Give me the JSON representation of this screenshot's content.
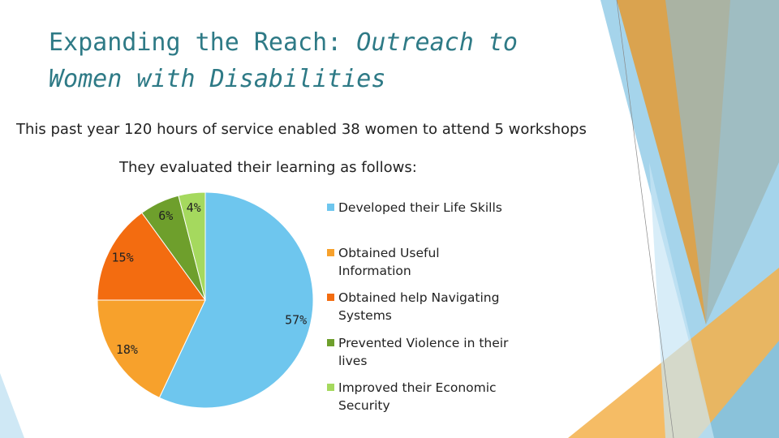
{
  "slide": {
    "title_plain": "Expanding the Reach:",
    "title_italic": "Outreach to Women with Disabilities",
    "text": "This past year 120 hours of service enabled 38 women to attend 5 workshops"
  },
  "chart_data": {
    "type": "pie",
    "title": "They evaluated their learning as follows:",
    "categories": [
      "Developed their Life Skills",
      "Obtained Useful Information",
      "Obtained help Navigating Systems",
      "Prevented Violence in their lives",
      "Improved their Economic Security"
    ],
    "values": [
      57,
      18,
      15,
      6,
      4
    ],
    "value_labels": [
      "57%",
      "18%",
      "15%",
      "6%",
      "4%"
    ],
    "colors": [
      "#6ec6ee",
      "#f7a12c",
      "#f36c10",
      "#6e9f2c",
      "#a5d95e"
    ],
    "legend": "right"
  }
}
